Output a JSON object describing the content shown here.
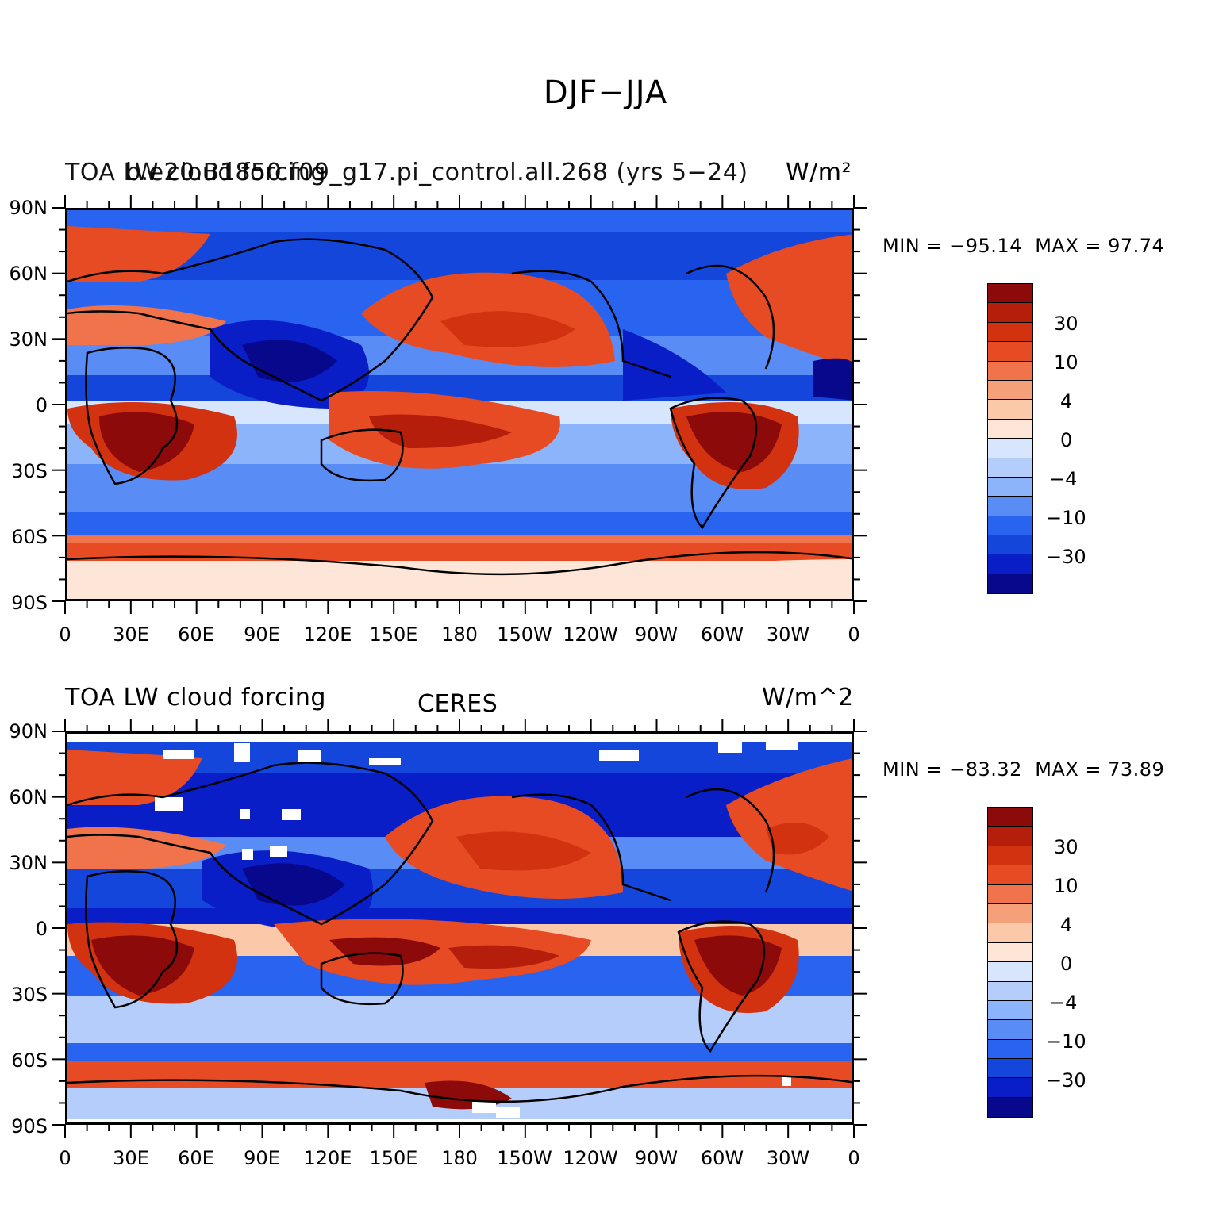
{
  "title": "DJF−JJA",
  "colors": {
    "contour_fill": [
      "#08088c",
      "#0a1ec8",
      "#1446dc",
      "#2864f0",
      "#5a8cf5",
      "#8cb4fa",
      "#b4cdfb",
      "#d7e6fc",
      "#fde6d7",
      "#fbc8aa",
      "#f5a078",
      "#f0734b",
      "#e64b23",
      "#d23210",
      "#b41e0a",
      "#8c0a0a"
    ],
    "coastline": "#000000",
    "missing": "#ffffff"
  },
  "y_axis_labels": [
    "90N",
    "60N",
    "30N",
    "0",
    "30S",
    "60S",
    "90S"
  ],
  "x_axis_labels": [
    "0",
    "30E",
    "60E",
    "90E",
    "120E",
    "150E",
    "180",
    "150W",
    "120W",
    "90W",
    "60W",
    "30W",
    "0"
  ],
  "colorbar_labels": [
    "30",
    "10",
    "4",
    "0",
    "−4",
    "−10",
    "−30"
  ],
  "panels": [
    {
      "id": "model",
      "left_text": "TOA LW cloud forcing",
      "center_text": "b.e20.B1850.f09_g17.pi_control.all.268 (yrs 5−24)",
      "right_text": "W/m²",
      "min_label": "MIN = −95.14",
      "max_label": "MAX =   97.74",
      "min": -95.14,
      "max": 97.74
    },
    {
      "id": "obs",
      "left_text": "TOA LW cloud forcing",
      "center_text": "CERES",
      "right_text": "W/m^2",
      "min_label": "MIN = −83.32",
      "max_label": "MAX =   73.89",
      "min": -83.32,
      "max": 73.89
    }
  ]
}
